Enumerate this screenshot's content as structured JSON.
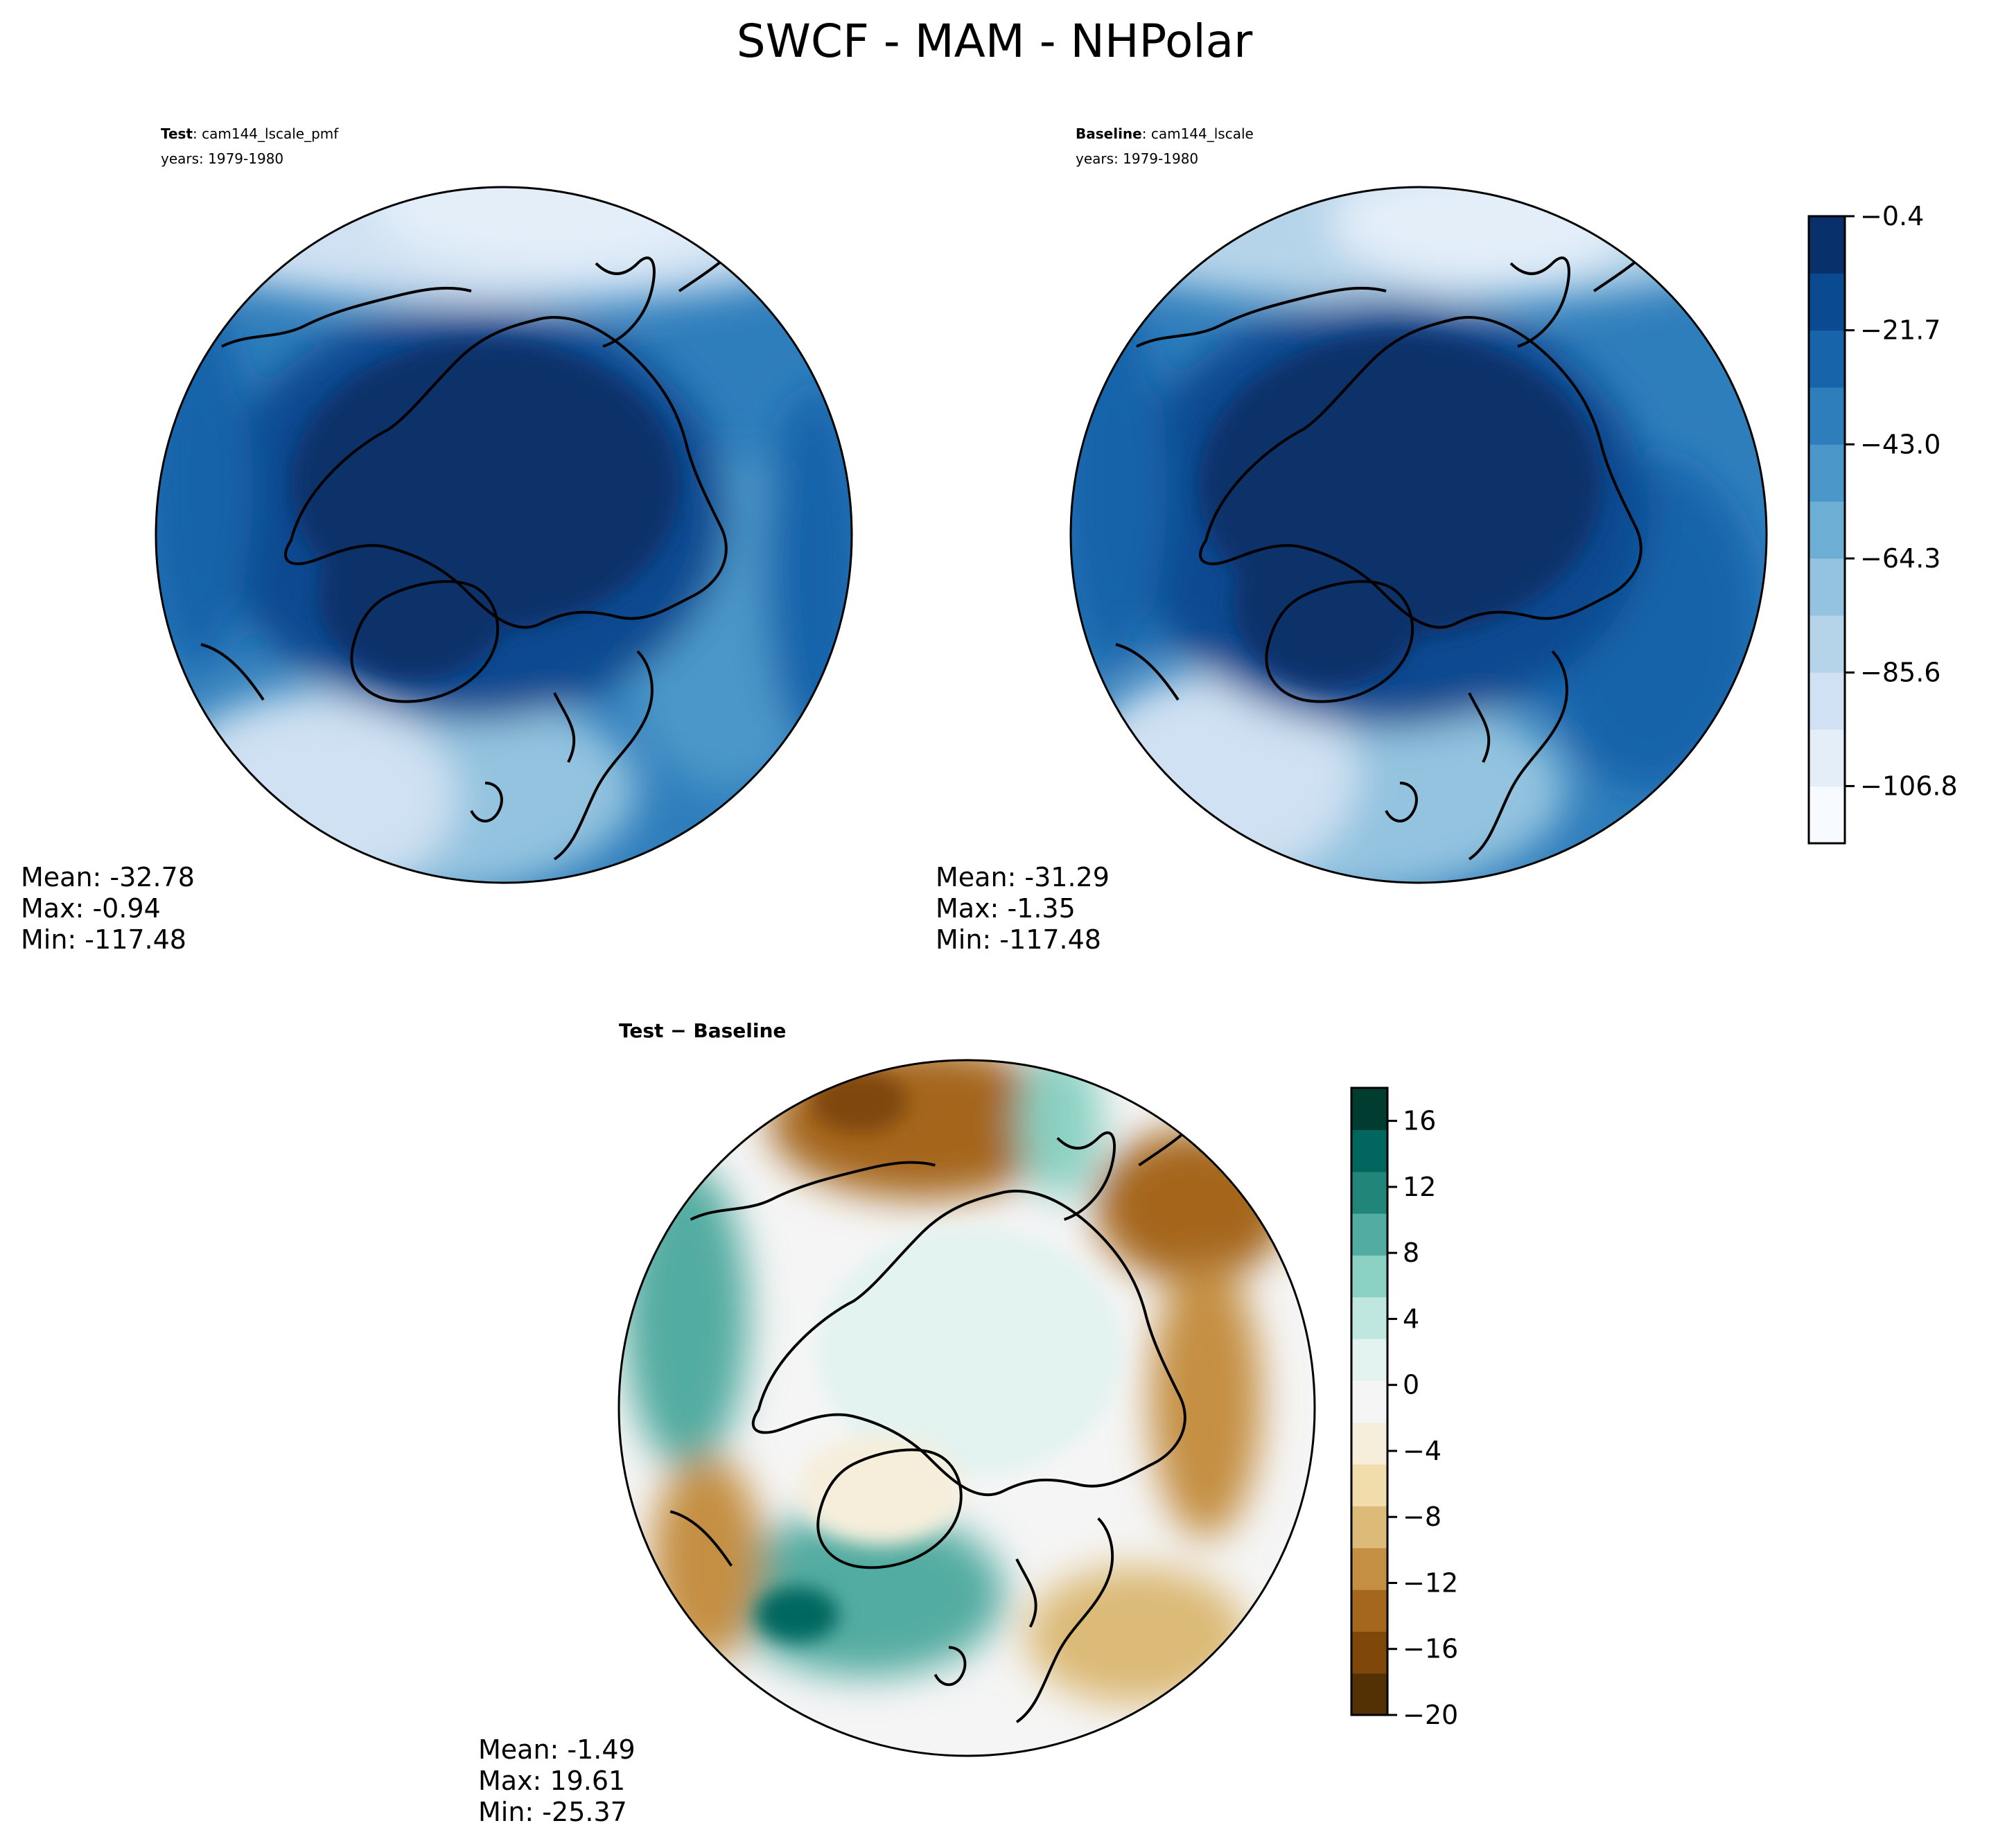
{
  "title": "SWCF - MAM - NHPolar",
  "panels": {
    "test": {
      "label_bold": "Test",
      "label_rest": ": cam144_lscale_pmf",
      "years": "years: 1979-1980",
      "stats": {
        "mean": "Mean: -32.78",
        "max": "Max: -0.94",
        "min": "Min: -117.48"
      }
    },
    "baseline": {
      "label_bold": "Baseline",
      "label_rest": ": cam144_lscale",
      "years": "years: 1979-1980",
      "stats": {
        "mean": "Mean: -31.29",
        "max": "Max: -1.35",
        "min": "Min: -117.48"
      }
    },
    "diff": {
      "label_a": "Test",
      "label_sep": " − ",
      "label_b": "Baseline",
      "stats": {
        "mean": "Mean: -1.49",
        "max": "Max: 19.61",
        "min": "Min: -25.37"
      }
    }
  },
  "chart_data": [
    {
      "type": "heatmap",
      "name": "Test",
      "projection": "north-polar-stereographic",
      "colormap": "Blues",
      "colorbar": {
        "range": [
          -117.48,
          -0.4
        ],
        "ticks": [
          -0.4,
          -21.7,
          -43.0,
          -64.3,
          -85.6,
          -106.8
        ],
        "tick_labels": [
          "−0.4",
          "−21.7",
          "−43.0",
          "−64.3",
          "−85.6",
          "−106.8"
        ],
        "colors": [
          "#f7fbff",
          "#e3eef9",
          "#cfe1f2",
          "#b5d4e9",
          "#93c3df",
          "#6daed5",
          "#4b97c9",
          "#2f7ebc",
          "#1864aa",
          "#0a4a90",
          "#08306b"
        ]
      },
      "stats": {
        "mean": -32.78,
        "max": -0.94,
        "min": -117.48
      }
    },
    {
      "type": "heatmap",
      "name": "Baseline",
      "projection": "north-polar-stereographic",
      "colormap": "Blues",
      "stats": {
        "mean": -31.29,
        "max": -1.35,
        "min": -117.48
      }
    },
    {
      "type": "heatmap",
      "name": "Test - Baseline",
      "projection": "north-polar-stereographic",
      "colormap": "BrBG",
      "colorbar": {
        "range": [
          -20,
          18
        ],
        "ticks": [
          16,
          12,
          8,
          4,
          0,
          -4,
          -8,
          -12,
          -16,
          -20
        ],
        "tick_labels": [
          "16",
          "12",
          "8",
          "4",
          "0",
          "−4",
          "−8",
          "−12",
          "−16",
          "−20"
        ],
        "colors": [
          "#543005",
          "#7f470a",
          "#a5661e",
          "#c48f43",
          "#dcba77",
          "#f1dcab",
          "#f6eedb",
          "#f5f5f5",
          "#e2f3f0",
          "#bfe6df",
          "#8ad1c3",
          "#52aca1",
          "#218579",
          "#01665e",
          "#003c30"
        ]
      },
      "stats": {
        "mean": -1.49,
        "max": 19.61,
        "min": -25.37
      }
    }
  ],
  "colors": {
    "blues_dark": "#08306b",
    "blues_light": "#f7fbff",
    "brbg_brown": "#543005",
    "brbg_teal": "#003c30",
    "coastline": "#000000"
  }
}
